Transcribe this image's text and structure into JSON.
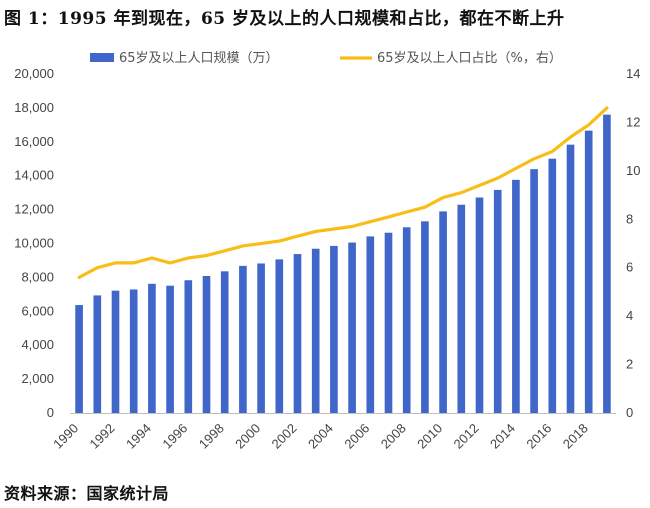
{
  "title": "图 1：1995 年到现在，65 岁及以上的人口规模和占比，都在不断上升",
  "source": "资料来源：国家统计局",
  "colors": {
    "bar": "#4066C9",
    "line": "#F7BE17"
  },
  "chart_data": {
    "type": "bar+line",
    "title": "图 1：1995 年到现在，65 岁及以上的人口规模和占比，都在不断上升",
    "categories": [
      "1990",
      "1991",
      "1992",
      "1993",
      "1994",
      "1995",
      "1996",
      "1997",
      "1998",
      "1999",
      "2000",
      "2001",
      "2002",
      "2003",
      "2004",
      "2005",
      "2006",
      "2007",
      "2008",
      "2009",
      "2010",
      "2011",
      "2012",
      "2013",
      "2014",
      "2015",
      "2016",
      "2017",
      "2018",
      "2019"
    ],
    "x_tick_labels": [
      "1990",
      "1992",
      "1994",
      "1996",
      "1998",
      "2000",
      "2002",
      "2004",
      "2006",
      "2008",
      "2010",
      "2012",
      "2014",
      "2016",
      "2018"
    ],
    "series": [
      {
        "name": "65岁及以上人口规模（万）",
        "type": "bar",
        "axis": "left",
        "values": [
          6368,
          6938,
          7218,
          7289,
          7622,
          7510,
          7833,
          8085,
          8359,
          8679,
          8821,
          9062,
          9377,
          9692,
          9857,
          10055,
          10419,
          10636,
          10956,
          11307,
          11894,
          12288,
          12714,
          13161,
          13755,
          14386,
          15003,
          15831,
          16658,
          17603
        ]
      },
      {
        "name": "65岁及以上人口占比（%，右）",
        "type": "line",
        "axis": "right",
        "values": [
          5.6,
          6.0,
          6.2,
          6.2,
          6.4,
          6.2,
          6.4,
          6.5,
          6.7,
          6.9,
          7.0,
          7.1,
          7.3,
          7.5,
          7.6,
          7.7,
          7.9,
          8.1,
          8.3,
          8.5,
          8.9,
          9.1,
          9.4,
          9.7,
          10.1,
          10.5,
          10.8,
          11.4,
          11.9,
          12.6
        ]
      }
    ],
    "y_left": {
      "ylim": [
        0,
        20000
      ],
      "ticks": [
        "0",
        "2,000",
        "4,000",
        "6,000",
        "8,000",
        "10,000",
        "12,000",
        "14,000",
        "16,000",
        "18,000",
        "20,000"
      ]
    },
    "y_right": {
      "ylim": [
        0,
        14
      ],
      "ticks": [
        "0",
        "2",
        "4",
        "6",
        "8",
        "10",
        "12",
        "14"
      ]
    },
    "legend": {
      "placement": "top-center"
    },
    "grid": false
  }
}
